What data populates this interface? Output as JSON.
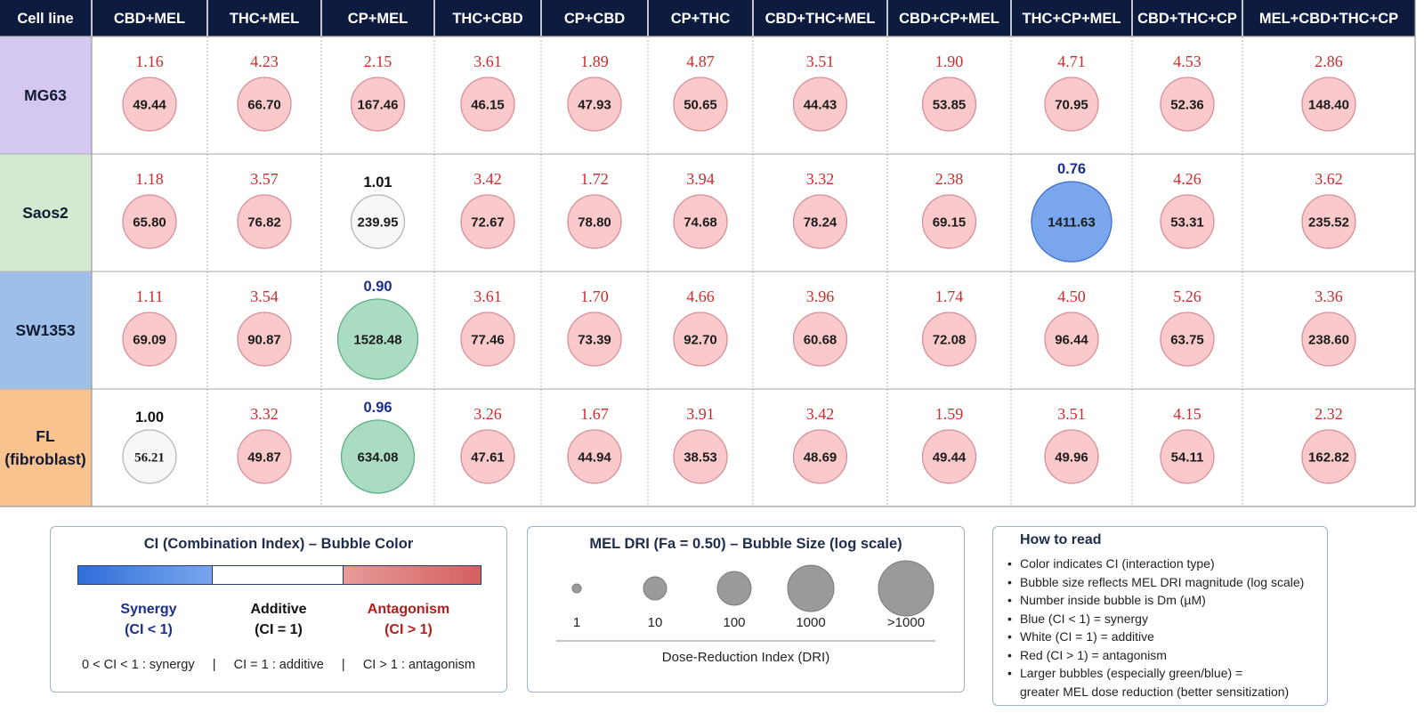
{
  "chart_data": {
    "type": "bubble-matrix",
    "row_header": "Cell line",
    "columns": [
      "CBD+MEL",
      "THC+MEL",
      "CP+MEL",
      "THC+CBD",
      "CP+CBD",
      "CP+THC",
      "CBD+THC+MEL",
      "CBD+CP+MEL",
      "THC+CP+MEL",
      "CBD+THC+CP",
      "MEL+CBD+THC+CP"
    ],
    "rows": [
      {
        "name": "MG63",
        "color": "#d5c8f0",
        "ci": [
          "1.16",
          "4.23",
          "2.15",
          "3.61",
          "1.89",
          "4.87",
          "3.51",
          "1.90",
          "4.71",
          "4.53",
          "2.86"
        ],
        "dm": [
          "49.44",
          "66.70",
          "167.46",
          "46.15",
          "47.93",
          "50.65",
          "44.43",
          "53.85",
          "70.95",
          "52.36",
          "148.40"
        ],
        "cls": [
          "red",
          "red",
          "red",
          "red",
          "red",
          "red",
          "red",
          "red",
          "red",
          "red",
          "red"
        ],
        "size": [
          2,
          2,
          2,
          2,
          2,
          2,
          2,
          2,
          2,
          2,
          2
        ]
      },
      {
        "name": "Saos2",
        "color": "#d4ead0",
        "ci": [
          "1.18",
          "3.57",
          "1.01",
          "3.42",
          "1.72",
          "3.94",
          "3.32",
          "2.38",
          "0.76",
          "4.26",
          "3.62"
        ],
        "dm": [
          "65.80",
          "76.82",
          "239.95",
          "72.67",
          "78.80",
          "74.68",
          "78.24",
          "69.15",
          "1411.63",
          "53.31",
          "235.52"
        ],
        "cls": [
          "red",
          "red",
          "white",
          "red",
          "red",
          "red",
          "red",
          "red",
          "blue",
          "red",
          "red"
        ],
        "size": [
          2,
          2,
          2,
          2,
          2,
          2,
          2,
          2,
          4,
          2,
          2
        ]
      },
      {
        "name": "SW1353",
        "color": "#9dbfe8",
        "ci": [
          "1.11",
          "3.54",
          "0.90",
          "3.61",
          "1.70",
          "4.66",
          "3.96",
          "1.74",
          "4.50",
          "5.26",
          "3.36"
        ],
        "dm": [
          "69.09",
          "90.87",
          "1528.48",
          "77.46",
          "73.39",
          "92.70",
          "60.68",
          "72.08",
          "96.44",
          "63.75",
          "238.60"
        ],
        "cls": [
          "red",
          "red",
          "green",
          "red",
          "red",
          "red",
          "red",
          "red",
          "red",
          "red",
          "red"
        ],
        "size": [
          2,
          2,
          4,
          2,
          2,
          2,
          2,
          2,
          2,
          2,
          2
        ]
      },
      {
        "name": "FL\n(fibroblast)",
        "color": "#f8c38f",
        "ci": [
          "1.00",
          "3.32",
          "0.96",
          "3.26",
          "1.67",
          "3.91",
          "3.42",
          "1.59",
          "3.51",
          "4.15",
          "2.32"
        ],
        "dm": [
          "56.21",
          "49.87",
          "634.08",
          "47.61",
          "44.94",
          "38.53",
          "48.69",
          "49.44",
          "49.96",
          "54.11",
          "162.82"
        ],
        "cls": [
          "white",
          "red",
          "green",
          "red",
          "red",
          "red",
          "red",
          "red",
          "red",
          "red",
          "red"
        ],
        "size": [
          2,
          2,
          3,
          2,
          2,
          2,
          2,
          2,
          2,
          2,
          2
        ]
      }
    ],
    "colors": {
      "header": "#0d1b3e",
      "ci_red": "#cc2b2b",
      "ci_blue": "#1a2e8c",
      "bubble_red": "#f9c9cc",
      "bubble_blue": "#7aa6ee",
      "bubble_green": "#a9dcc0",
      "bubble_white": "#f7f7f7"
    }
  },
  "legend_ci": {
    "title": "CI (Combination Index) – Bubble Color",
    "synergy": "Synergy",
    "synergy_sub": "(CI < 1)",
    "additive": "Additive",
    "additive_sub": "(CI = 1)",
    "antagonism": "Antagonism",
    "antagonism_sub": "(CI > 1)",
    "footer": "0 < CI < 1 : synergy     |     CI = 1 : additive     |     CI > 1 : antagonism"
  },
  "legend_dri": {
    "title": "MEL DRI (Fa = 0.50) – Bubble Size (log scale)",
    "levels": [
      "1",
      "10",
      "100",
      "1000",
      ">1000"
    ],
    "axis_label": "Dose-Reduction Index (DRI)"
  },
  "how_to_read": {
    "title": "How to read",
    "items": [
      "Color indicates CI (interaction type)",
      "Bubble size reflects MEL DRI magnitude (log scale)",
      "Number inside bubble is Dm (µM)",
      "Blue (CI < 1) = synergy",
      "White (CI = 1) = additive",
      "Red (CI > 1) = antagonism",
      "Larger bubbles (especially green/blue) =",
      "    greater MEL dose reduction (better sensitization)"
    ]
  }
}
